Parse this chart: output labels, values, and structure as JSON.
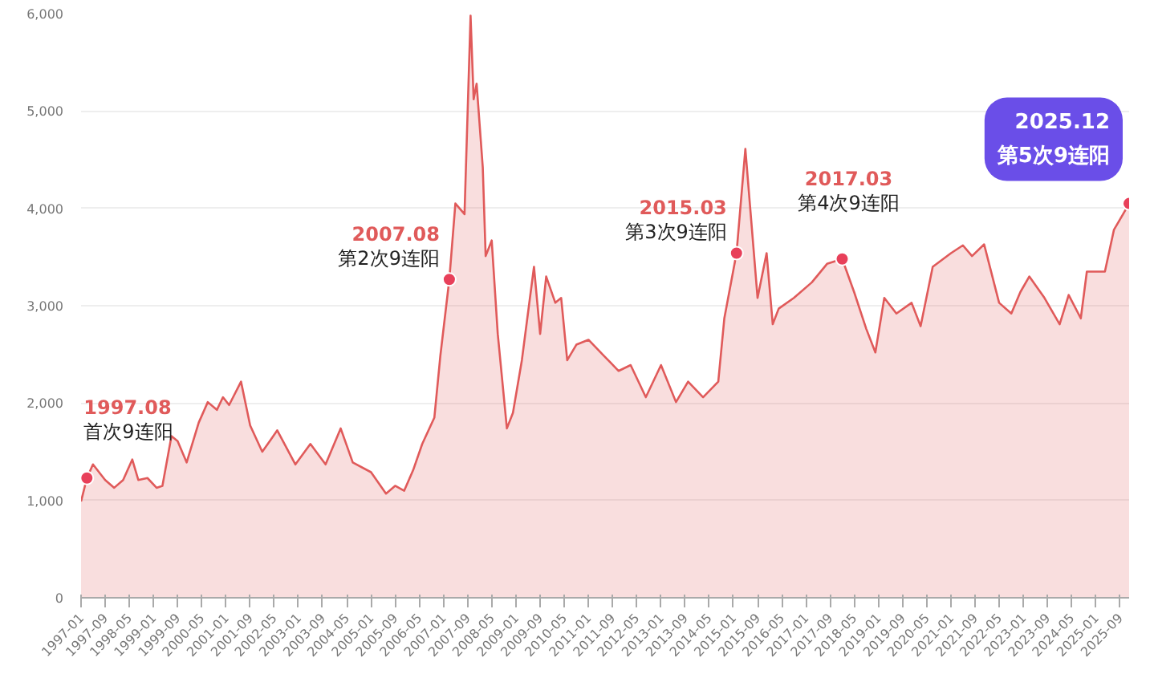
{
  "chart_data": {
    "type": "area",
    "grid": "y",
    "x": [
      "1997-01",
      "1997-03",
      "1997-05",
      "1997-09",
      "1997-12",
      "1998-03",
      "1998-06",
      "1998-08",
      "1998-11",
      "1999-02",
      "1999-04",
      "1999-07",
      "1999-09",
      "1999-12",
      "2000-04",
      "2000-07",
      "2000-10",
      "2000-12",
      "2001-02",
      "2001-06",
      "2001-09",
      "2002-01",
      "2002-04",
      "2002-06",
      "2002-12",
      "2003-05",
      "2003-10",
      "2004-03",
      "2004-07",
      "2005-01",
      "2005-06",
      "2005-09",
      "2005-12",
      "2006-03",
      "2006-06",
      "2006-10",
      "2006-12",
      "2007-03",
      "2007-05",
      "2007-08",
      "2007-10",
      "2007-11",
      "2007-12",
      "2008-02",
      "2008-03",
      "2008-05",
      "2008-07",
      "2008-10",
      "2008-12",
      "2009-03",
      "2009-07",
      "2009-09",
      "2009-11",
      "2010-02",
      "2010-04",
      "2010-06",
      "2010-09",
      "2011-01",
      "2011-06",
      "2011-11",
      "2012-03",
      "2012-08",
      "2013-01",
      "2013-06",
      "2013-10",
      "2014-03",
      "2014-08",
      "2014-10",
      "2015-02",
      "2015-05",
      "2015-09",
      "2015-12",
      "2016-02",
      "2016-04",
      "2016-09",
      "2017-03",
      "2017-08",
      "2018-01",
      "2018-05",
      "2018-09",
      "2018-12",
      "2019-03",
      "2019-07",
      "2019-12",
      "2020-03",
      "2020-07",
      "2021-01",
      "2021-05",
      "2021-08",
      "2021-12",
      "2022-05",
      "2022-09",
      "2022-12",
      "2023-03",
      "2023-08",
      "2024-01",
      "2024-04",
      "2024-08",
      "2024-10",
      "2025-04",
      "2025-07",
      "2025-10",
      "2025-12"
    ],
    "series": [
      {
        "color": "#e05a5a",
        "values": [
          990,
          1230,
          1370,
          1210,
          1130,
          1210,
          1420,
          1210,
          1230,
          1130,
          1150,
          1660,
          1610,
          1390,
          1800,
          2010,
          1930,
          2060,
          1980,
          2220,
          1770,
          1500,
          1630,
          1720,
          1370,
          1580,
          1370,
          1740,
          1390,
          1290,
          1070,
          1150,
          1100,
          1310,
          1580,
          1850,
          2490,
          3270,
          4050,
          3940,
          5980,
          5120,
          5280,
          4420,
          3510,
          3670,
          2710,
          1740,
          1900,
          2440,
          3400,
          2710,
          3300,
          3030,
          3080,
          2440,
          2600,
          2650,
          2490,
          2330,
          2390,
          2060,
          2390,
          2010,
          2220,
          2060,
          2220,
          2870,
          3540,
          4610,
          3080,
          3540,
          2810,
          2970,
          3080,
          3240,
          3430,
          3480,
          3140,
          2760,
          2520,
          3080,
          2920,
          3030,
          2790,
          3400,
          3540,
          3620,
          3510,
          3630,
          3030,
          2920,
          3140,
          3300,
          3080,
          2810,
          3110,
          2870,
          3350,
          3350,
          3780,
          3940,
          4050
        ]
      }
    ],
    "xlim": [
      "1997-01",
      "2025-12"
    ],
    "xticks": [
      "1997-01",
      "1997-09",
      "1998-05",
      "1999-01",
      "1999-09",
      "2000-05",
      "2001-01",
      "2001-09",
      "2002-05",
      "2003-01",
      "2003-09",
      "2004-05",
      "2005-01",
      "2005-09",
      "2006-05",
      "2007-01",
      "2007-09",
      "2008-05",
      "2009-01",
      "2009-09",
      "2010-05",
      "2011-01",
      "2011-09",
      "2012-05",
      "2013-01",
      "2013-09",
      "2014-05",
      "2015-01",
      "2015-09",
      "2016-05",
      "2017-01",
      "2017-09",
      "2018-05",
      "2019-01",
      "2019-09",
      "2020-05",
      "2021-01",
      "2021-09",
      "2022-05",
      "2023-01",
      "2023-09",
      "2024-05",
      "2025-01",
      "2025-09"
    ],
    "ylim": [
      0,
      6000
    ],
    "yticks": [
      0,
      {
        "value": 1000,
        "label": "1,000"
      },
      {
        "value": 2000,
        "label": "2,000"
      },
      {
        "value": 3000,
        "label": "3,000"
      },
      {
        "value": 4000,
        "label": "4,000"
      },
      {
        "value": 5000,
        "label": "5,000"
      },
      {
        "value": 6000,
        "label": "6,000"
      }
    ],
    "annotations": [
      {
        "text": "1997.08\n首次9连阳",
        "x": "1997-03",
        "y": 1230
      },
      {
        "text": "2007.08\n第2次9连阳",
        "x": "2007-03",
        "y": 3270
      },
      {
        "text": "2015.03\n第3次9连阳",
        "x": "2015-02",
        "y": 3540
      },
      {
        "text": "2017.03\n第4次9连阳",
        "x": "2018-01",
        "y": 3480
      },
      {
        "text": "2025.12\n第5次9连阳",
        "x": "2025-12",
        "y": 4050
      }
    ]
  }
}
